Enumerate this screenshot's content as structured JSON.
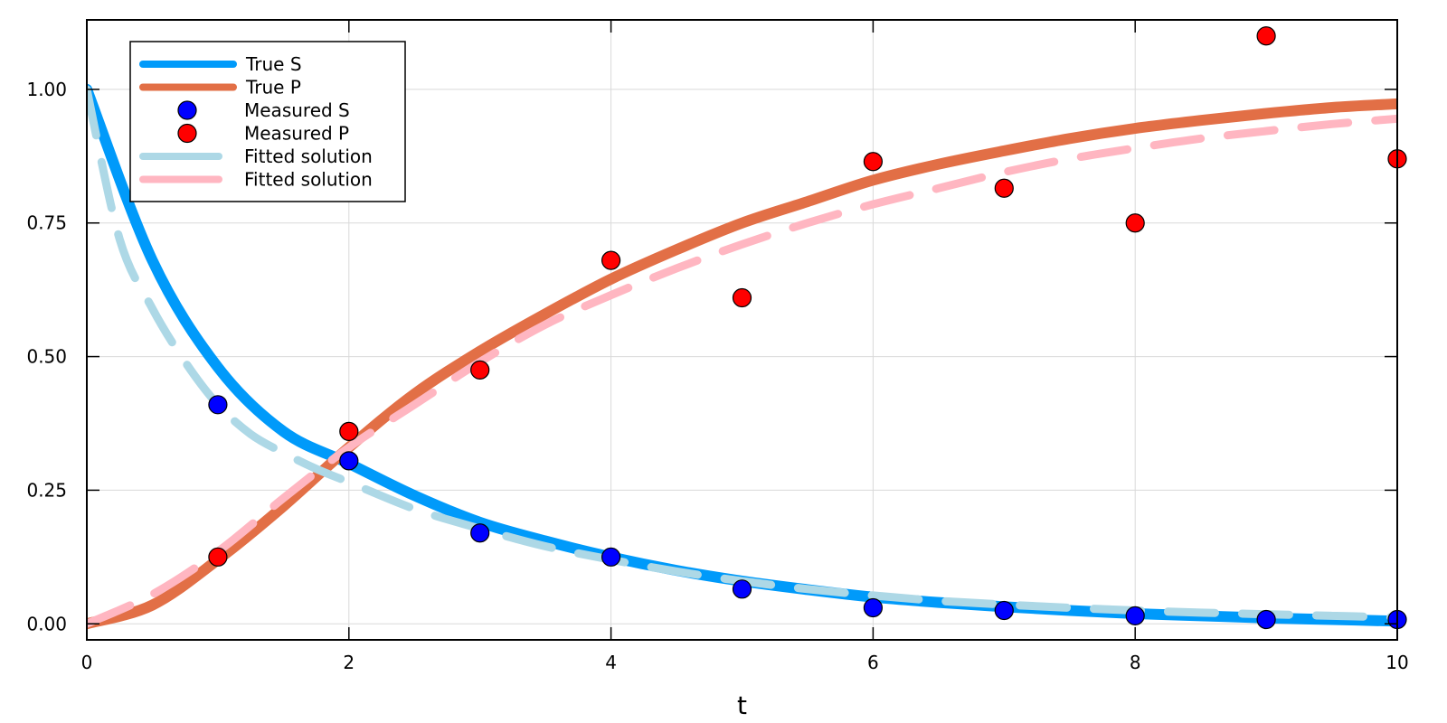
{
  "chart_data": {
    "type": "line",
    "xlabel": "t",
    "ylabel": "",
    "xlim": [
      0,
      10
    ],
    "ylim": [
      -0.03,
      1.13
    ],
    "xticks": [
      0,
      2,
      4,
      6,
      8,
      10
    ],
    "xtick_labels": [
      "0",
      "2",
      "4",
      "6",
      "8",
      "10"
    ],
    "yticks": [
      0,
      0.25,
      0.5,
      0.75,
      1.0
    ],
    "ytick_labels": [
      "0.00",
      "0.25",
      "0.50",
      "0.75",
      "1.00"
    ],
    "grid": true,
    "legend_position": "top-left",
    "series": [
      {
        "name": "True S",
        "kind": "line",
        "color": "#009AFA",
        "x": [
          0,
          0.5,
          1,
          1.5,
          2,
          2.5,
          3,
          3.5,
          4,
          4.5,
          5,
          5.5,
          6,
          6.5,
          7,
          7.5,
          8,
          8.5,
          9,
          9.5,
          10
        ],
        "y": [
          1.0,
          0.68,
          0.48,
          0.36,
          0.3,
          0.24,
          0.19,
          0.155,
          0.125,
          0.1,
          0.08,
          0.064,
          0.05,
          0.04,
          0.032,
          0.025,
          0.019,
          0.015,
          0.011,
          0.008,
          0.005
        ]
      },
      {
        "name": "True P",
        "kind": "line",
        "color": "#E26F46",
        "x": [
          0,
          0.5,
          1,
          1.5,
          2,
          2.5,
          3,
          3.5,
          4,
          4.5,
          5,
          5.5,
          6,
          6.5,
          7,
          7.5,
          8,
          8.5,
          9,
          9.5,
          10
        ],
        "y": [
          0.0,
          0.035,
          0.12,
          0.22,
          0.33,
          0.43,
          0.51,
          0.58,
          0.645,
          0.7,
          0.75,
          0.79,
          0.83,
          0.86,
          0.885,
          0.908,
          0.927,
          0.942,
          0.955,
          0.966,
          0.973
        ]
      },
      {
        "name": "Measured S",
        "kind": "scatter",
        "color": "#0000FF",
        "x": [
          1,
          2,
          3,
          4,
          5,
          6,
          7,
          8,
          9,
          10
        ],
        "y": [
          0.41,
          0.305,
          0.17,
          0.125,
          0.065,
          0.03,
          0.025,
          0.015,
          0.008,
          0.008
        ]
      },
      {
        "name": "Measured P",
        "kind": "scatter",
        "color": "#FF0000",
        "x": [
          1,
          2,
          3,
          4,
          5,
          6,
          7,
          8,
          9,
          10
        ],
        "y": [
          0.125,
          0.36,
          0.475,
          0.68,
          0.61,
          0.865,
          0.815,
          0.75,
          1.1,
          0.87
        ]
      },
      {
        "name": "Fitted solution",
        "kind": "dashed",
        "color": "#ADD8E6",
        "x": [
          0,
          0.25,
          0.5,
          0.75,
          1,
          1.25,
          1.5,
          1.75,
          2,
          2.5,
          3,
          3.5,
          4,
          4.5,
          5,
          5.5,
          6,
          6.5,
          7,
          7.5,
          8,
          8.5,
          9,
          9.5,
          10
        ],
        "y": [
          1.0,
          0.72,
          0.59,
          0.49,
          0.41,
          0.355,
          0.32,
          0.29,
          0.265,
          0.215,
          0.178,
          0.145,
          0.12,
          0.098,
          0.08,
          0.065,
          0.053,
          0.043,
          0.036,
          0.03,
          0.025,
          0.021,
          0.018,
          0.015,
          0.012
        ]
      },
      {
        "name": "Fitted solution",
        "kind": "dashed",
        "color": "#FFB6C1",
        "x": [
          0,
          0.5,
          1,
          1.5,
          2,
          2.5,
          3,
          3.5,
          4,
          4.5,
          5,
          5.5,
          6,
          6.5,
          7,
          7.5,
          8,
          8.5,
          9,
          9.5,
          10
        ],
        "y": [
          0.0,
          0.055,
          0.135,
          0.235,
          0.33,
          0.41,
          0.49,
          0.56,
          0.615,
          0.665,
          0.71,
          0.75,
          0.785,
          0.815,
          0.845,
          0.87,
          0.89,
          0.908,
          0.922,
          0.935,
          0.945
        ]
      }
    ]
  }
}
